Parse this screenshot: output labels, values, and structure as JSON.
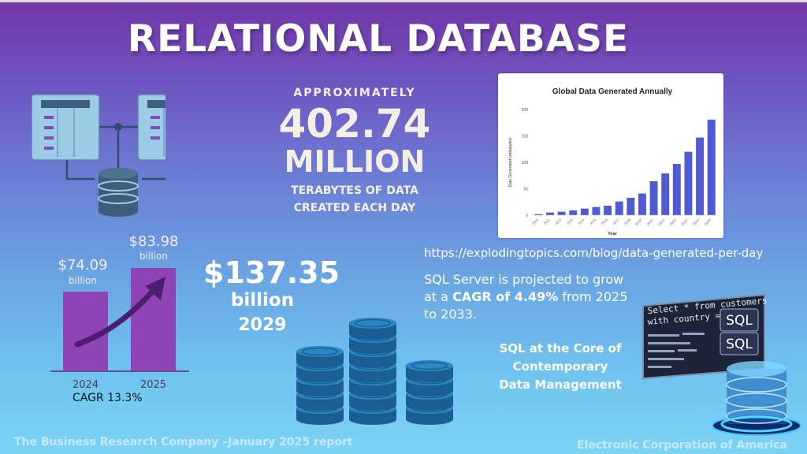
{
  "title": "RELATIONAL DATABASE",
  "data_stat": {
    "prefix": "APPROXIMATELY",
    "number": "402.74",
    "unit": "MILLION",
    "line1": "TERABYTES OF DATA",
    "line2": "CREATED EACH DAY"
  },
  "source_url": "https://explodingtopics.com/blog/data-generated-per-day",
  "sql_growth": {
    "before": "SQL Server is projected to grow at a ",
    "cagr": "CAGR of 4.49%",
    "after": " from 2025 to 2033."
  },
  "market_bars": {
    "bars": [
      {
        "year": "2024",
        "value_label": "$74.09",
        "unit": "billion",
        "value": 74.09
      },
      {
        "year": "2025",
        "value_label": "$83.98",
        "unit": "billion",
        "value": 83.98
      }
    ],
    "cagr_label": "CAGR 13.3%"
  },
  "forecast": {
    "value": "$137.35",
    "unit": "billion",
    "year": "2029"
  },
  "core_title_lines": [
    "SQL at the Core of",
    "Contemporary",
    "Data Management"
  ],
  "sql_graphic": {
    "code_line1": "Select * from customers",
    "code_line2": "with country = 'USA.'",
    "badge1": "SQL",
    "badge2": "SQL"
  },
  "footer": {
    "left": "The Business Research Company –January 2025 report",
    "right": "Electronic Corporation of America"
  },
  "colors": {
    "accent_bar": "#8e44b6",
    "chart_bar": "#4f5bd5",
    "coin": "#1f6fa8"
  },
  "chart_data": {
    "type": "bar",
    "title": "Global Data Generated Annually",
    "xlabel": "Year",
    "ylabel": "Data Generated (zettabytes)",
    "ylim": [
      0,
      200
    ],
    "yticks": [
      0,
      50,
      100,
      150,
      200
    ],
    "categories": [
      "2010",
      "2011",
      "2012",
      "2013",
      "2014",
      "2015",
      "2016",
      "2017",
      "2018",
      "2019",
      "2020",
      "2021",
      "2022",
      "2023",
      "2024",
      "2025"
    ],
    "category_labels": [
      "2010",
      "2011",
      "2012",
      "2013",
      "2014",
      "2015",
      "2016",
      "2017",
      "2018",
      "2019*",
      "2020*",
      "2021*",
      "2022*",
      "2023*",
      "2024*",
      "2025*"
    ],
    "values": [
      2,
      5,
      6.5,
      9,
      12.5,
      15.5,
      18,
      26,
      33,
      41,
      64.2,
      79,
      97,
      120,
      147,
      181
    ],
    "grid": false
  }
}
